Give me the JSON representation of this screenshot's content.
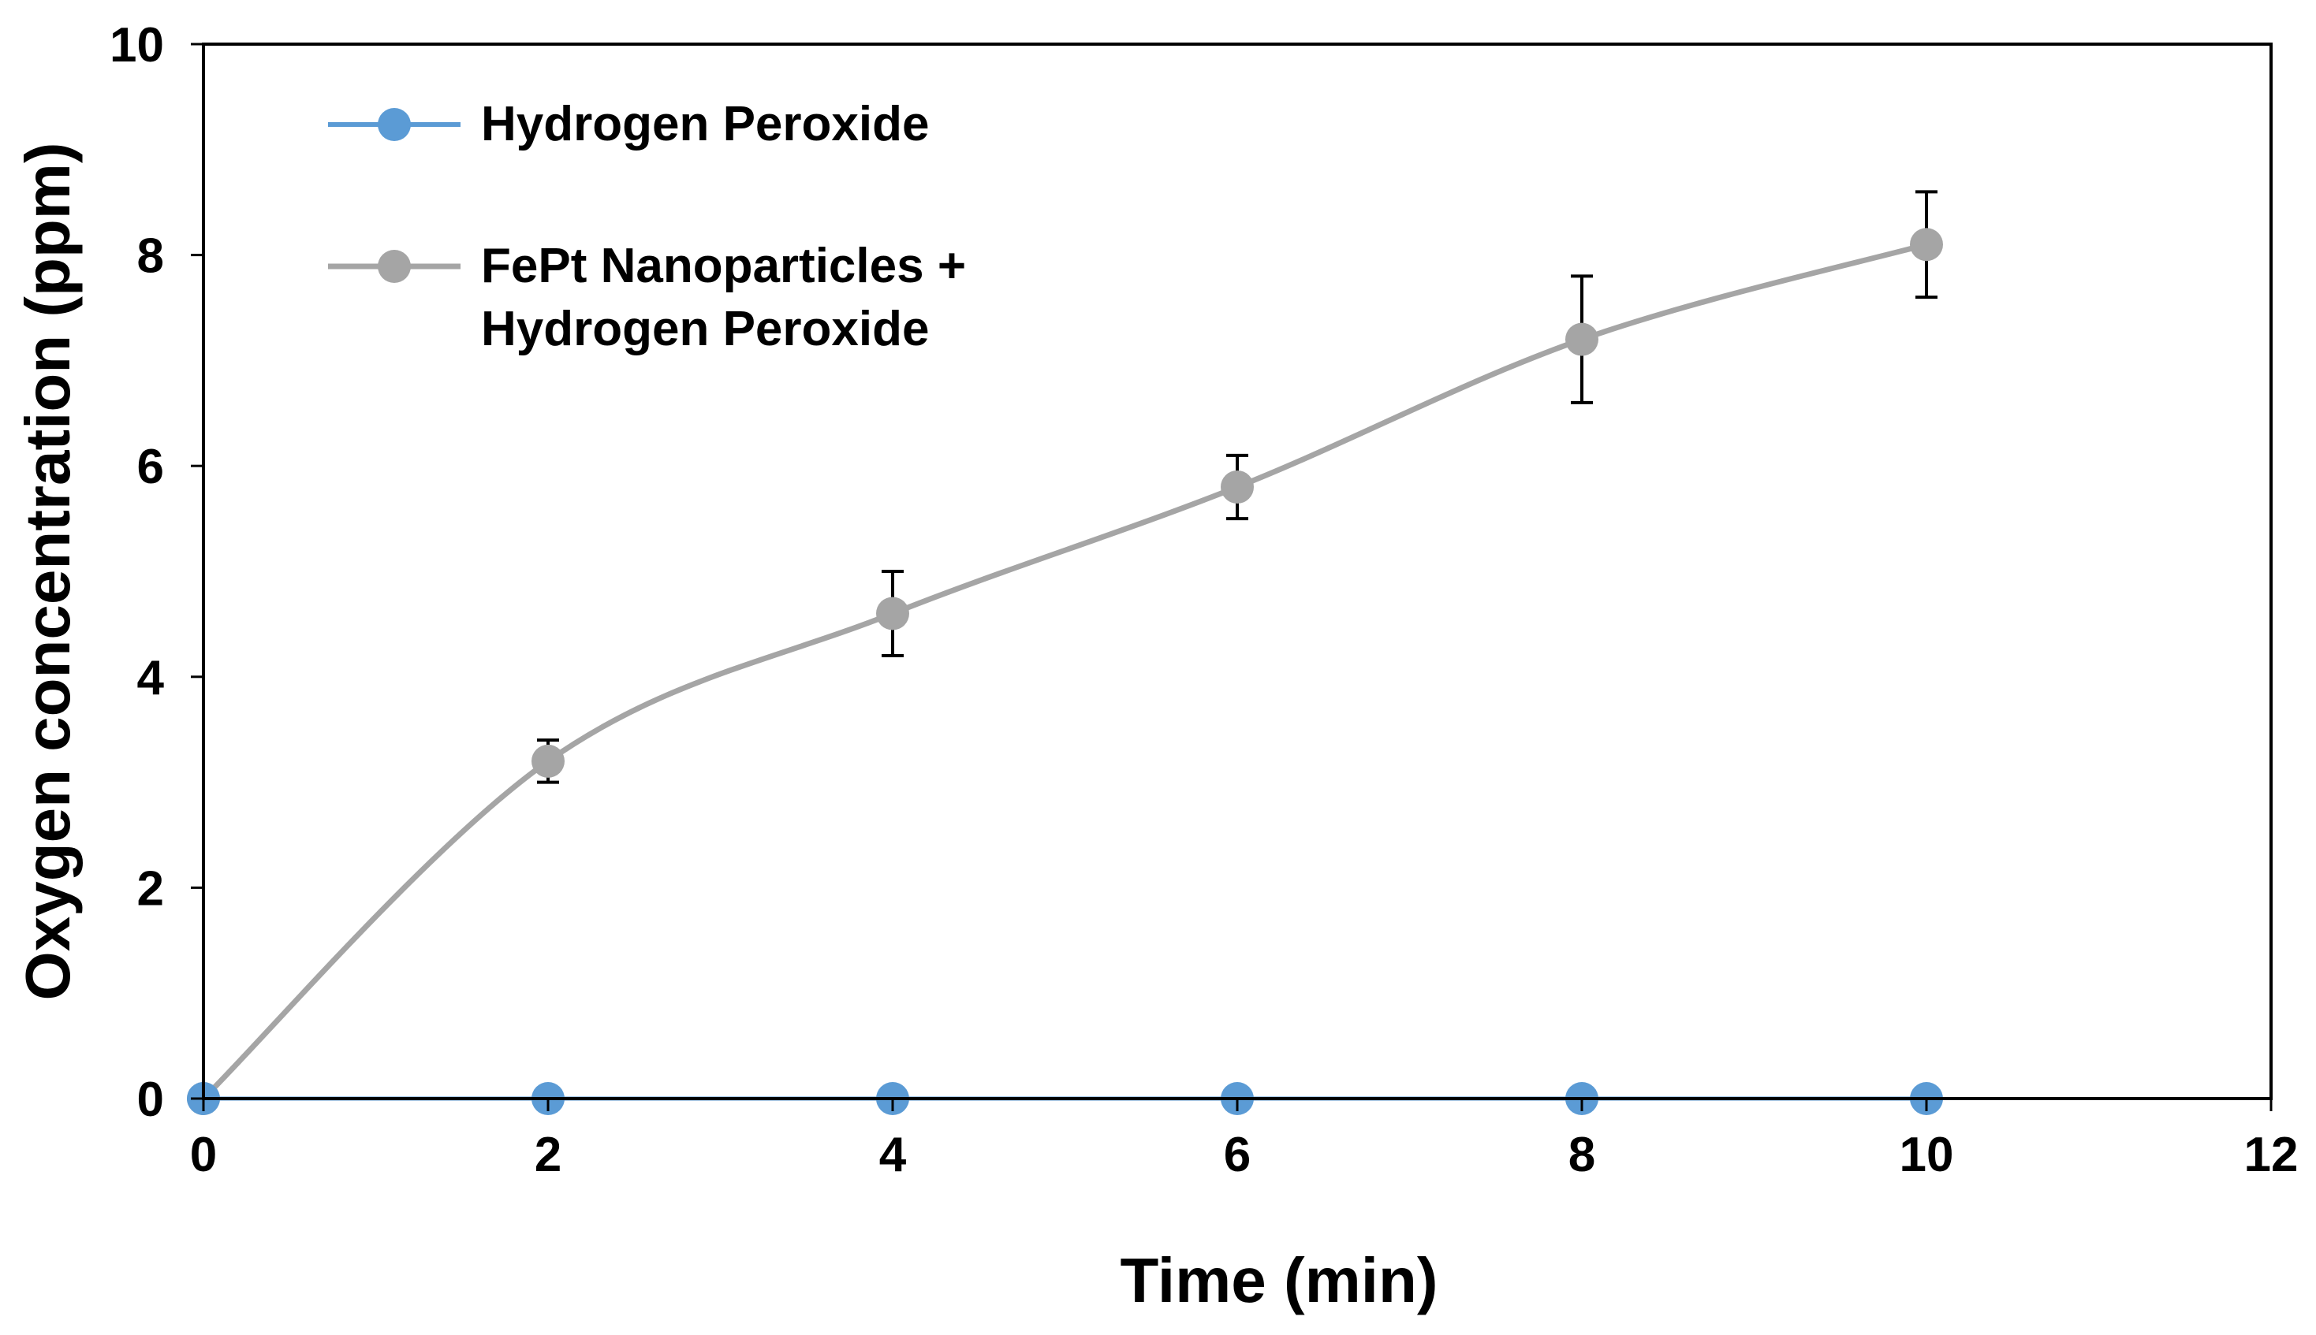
{
  "chart_data": {
    "type": "line",
    "title": "",
    "xlabel": "Time (min)",
    "ylabel": "Oxygen concentration (ppm)",
    "xlim": [
      0,
      12
    ],
    "ylim": [
      0,
      10
    ],
    "xticks": [
      0,
      2,
      4,
      6,
      8,
      10,
      12
    ],
    "yticks": [
      0,
      2,
      4,
      6,
      8,
      10
    ],
    "grid": false,
    "legend_position": "top-left",
    "series": [
      {
        "name": "Hydrogen Peroxide",
        "color": "#5b9bd5",
        "x": [
          0,
          2,
          4,
          6,
          8,
          10
        ],
        "y": [
          0,
          0,
          0,
          0,
          0,
          0
        ]
      },
      {
        "name": "FePt Nanoparticles + Hydrogen Peroxide",
        "name_lines": [
          "FePt Nanoparticles +",
          "Hydrogen Peroxide"
        ],
        "color": "#a5a5a5",
        "x": [
          0,
          2,
          4,
          6,
          8,
          10
        ],
        "y": [
          0,
          3.2,
          4.6,
          5.8,
          7.2,
          8.1
        ],
        "error": [
          0,
          0.2,
          0.4,
          0.3,
          0.6,
          0.5
        ]
      }
    ]
  }
}
